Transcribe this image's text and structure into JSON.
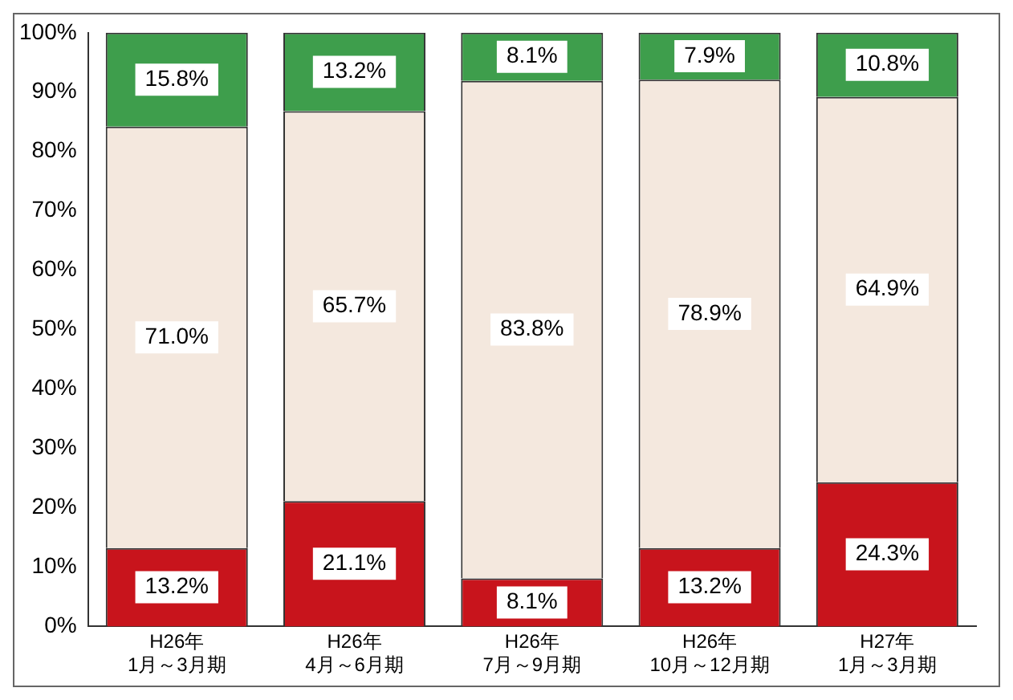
{
  "chart_data": {
    "type": "bar",
    "stacked": true,
    "categories": [
      "H26年\n1月～3月期",
      "H26年\n4月～6月期",
      "H26年\n7月～9月期",
      "H26年\n10月～12月期",
      "H27年\n1月～3月期"
    ],
    "series": [
      {
        "color": "#c8141c",
        "values": [
          13.2,
          21.1,
          8.1,
          13.2,
          24.3
        ],
        "value_labels": [
          "13.2%",
          "21.1%",
          "8.1%",
          "13.2%",
          "24.3%"
        ]
      },
      {
        "color": "#f4e8de",
        "values": [
          71.0,
          65.7,
          83.8,
          78.9,
          64.9
        ],
        "value_labels": [
          "71.0%",
          "65.7%",
          "83.8%",
          "78.9%",
          "64.9%"
        ]
      },
      {
        "color": "#3e9e4c",
        "values": [
          15.8,
          13.2,
          8.1,
          7.9,
          10.8
        ],
        "value_labels": [
          "15.8%",
          "13.2%",
          "8.1%",
          "7.9%",
          "10.8%"
        ]
      }
    ],
    "ylim": [
      0,
      100
    ],
    "yticks": [
      {
        "value": 0,
        "label": "0%"
      },
      {
        "value": 10,
        "label": "10%"
      },
      {
        "value": 20,
        "label": "20%"
      },
      {
        "value": 30,
        "label": "30%"
      },
      {
        "value": 40,
        "label": "40%"
      },
      {
        "value": 50,
        "label": "50%"
      },
      {
        "value": 60,
        "label": "60%"
      },
      {
        "value": 70,
        "label": "70%"
      },
      {
        "value": 80,
        "label": "80%"
      },
      {
        "value": 90,
        "label": "90%"
      },
      {
        "value": 100,
        "label": "100%"
      }
    ],
    "grid": false,
    "legend": false
  }
}
